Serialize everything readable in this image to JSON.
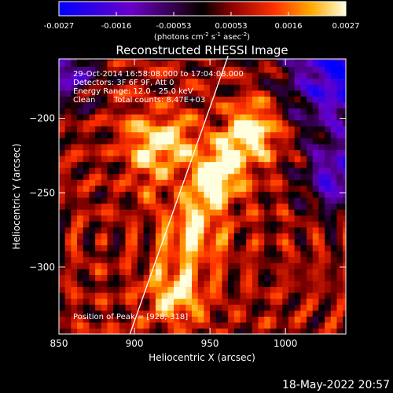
{
  "chart_data": {
    "type": "heatmap",
    "title": "Reconstructed RHESSI Image",
    "xlabel": "Heliocentric X (arcsec)",
    "ylabel": "Heliocentric Y (arcsec)",
    "xlim": [
      850,
      1040
    ],
    "ylim": [
      -345,
      -160
    ],
    "x_ticks": [
      850,
      900,
      950,
      1000
    ],
    "y_ticks": [
      -200,
      -250,
      -300
    ],
    "colorbar": {
      "ticks": [
        "-0.0027",
        "-0.0016",
        "-0.00053",
        "0.00053",
        "0.0016",
        "0.0027"
      ],
      "range": [
        -0.0027,
        0.0027
      ],
      "unit_parts": [
        "(photons cm",
        "-2",
        " s",
        "-1",
        " asec",
        "-2",
        ")"
      ]
    },
    "annotations": {
      "line1": "29-Oct-2014 16:58:08.000 to 17:04:08.000",
      "line2": "Detectors: 3F 6F 9F, Att 0",
      "line3": "Energy Range: 12.0 - 25.0 keV",
      "line4_clean": "Clean",
      "line4_counts": "Total counts: 8.47E+03",
      "peak": "Position of Peak = [928,-318]"
    },
    "limb_line": {
      "x": [
        897,
        962
      ],
      "y": [
        -345,
        -158
      ]
    },
    "bright_features": [
      {
        "x": 922,
        "y": -215,
        "intensity": 1.0
      },
      {
        "x": 980,
        "y": -210,
        "intensity": 1.0
      },
      {
        "x": 955,
        "y": -240,
        "intensity": 0.9
      },
      {
        "x": 928,
        "y": -318,
        "intensity": 1.0
      },
      {
        "x": 942,
        "y": -280,
        "intensity": 0.75
      }
    ],
    "footer_date": "18-May-2022 20:57"
  }
}
